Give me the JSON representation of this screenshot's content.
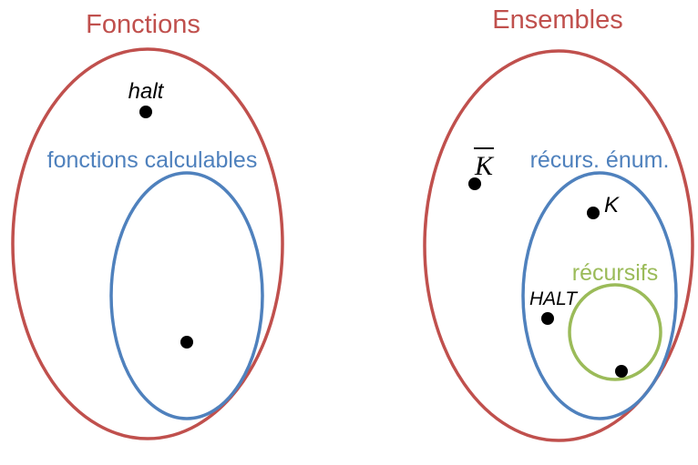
{
  "colors": {
    "red": "#c0504d",
    "blue": "#4f81bd",
    "green": "#9bbb59",
    "ink": "#000000"
  },
  "left": {
    "title": "Fonctions",
    "subset_label": "fonctions calculables",
    "point_halt": "halt"
  },
  "right": {
    "title": "Ensembles",
    "re_label": "récurs. énum.",
    "rec_label": "récursifs",
    "point_kbar": "K",
    "point_k": "K",
    "point_halt": "HALT"
  }
}
